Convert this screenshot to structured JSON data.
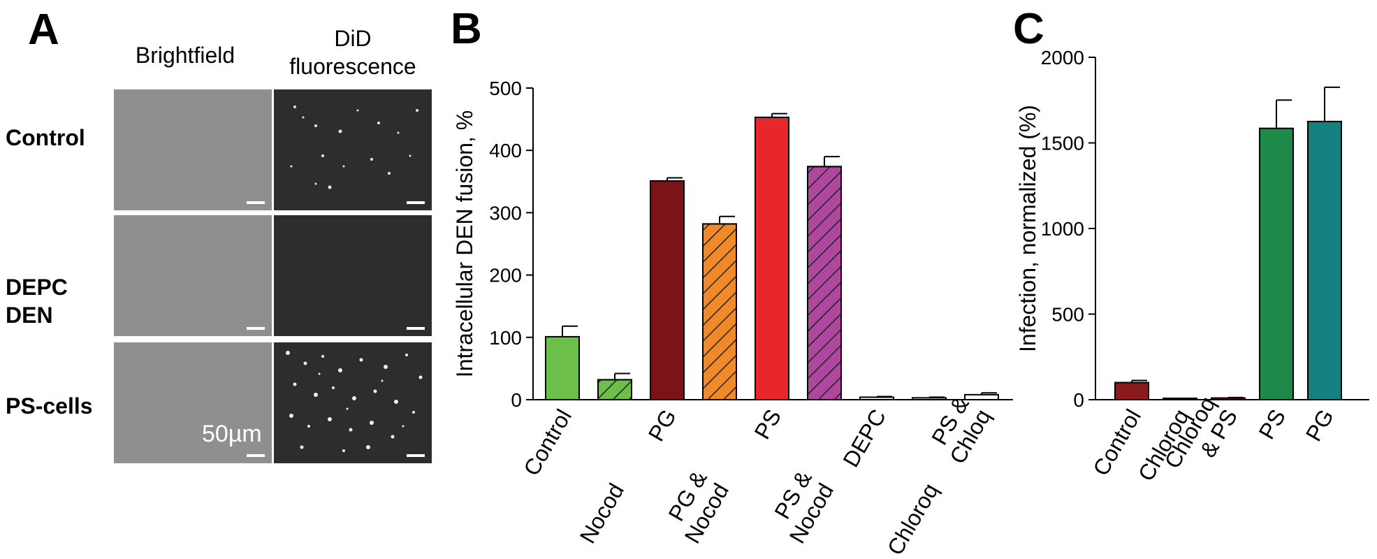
{
  "panel_a": {
    "letter": "A",
    "columns": [
      "Brightfield",
      "DiD",
      "fluorescence"
    ],
    "rows": [
      "Control",
      "DEPC",
      "DEN",
      "PS-cells"
    ],
    "scale_label": "50µm"
  },
  "chart_data": [
    {
      "type": "bar",
      "panel": "B",
      "ylabel": "Intracellular DEN fusion, %",
      "ylim": [
        0,
        500
      ],
      "yticks": [
        0,
        100,
        200,
        300,
        400,
        500
      ],
      "categories": [
        "Control",
        "Nocod",
        "PG",
        "PG & Nocod",
        "PS",
        "PS & Nocod",
        "DEPC",
        "Chloroq",
        "PS & Chloq"
      ],
      "category_lines": [
        [
          "Control"
        ],
        [
          "Nocod"
        ],
        [
          "PG"
        ],
        [
          "PG &",
          "Nocod"
        ],
        [
          "PS"
        ],
        [
          "PS &",
          "Nocod"
        ],
        [
          "DEPC"
        ],
        [
          "Chloroq"
        ],
        [
          "PS &",
          "Chloq"
        ]
      ],
      "values": [
        101,
        32,
        351,
        282,
        453,
        374,
        4,
        3,
        8
      ],
      "errors": [
        17,
        10,
        5,
        12,
        6,
        16,
        1,
        1,
        3
      ],
      "colors": [
        "#6cc04a",
        "#6cc04a",
        "#7a1418",
        "#f08a28",
        "#e8272b",
        "#b0479e",
        "#ffffff",
        "#ffffff",
        "#ffffff"
      ],
      "hatched": [
        false,
        true,
        false,
        true,
        false,
        true,
        false,
        false,
        false
      ]
    },
    {
      "type": "bar",
      "panel": "C",
      "ylabel": "Infection, normalized (%)",
      "ylim": [
        0,
        2000
      ],
      "yticks": [
        0,
        500,
        1000,
        1500,
        2000
      ],
      "categories": [
        "Control",
        "Chloroq",
        "Chloroq & PS",
        "PS",
        "PG"
      ],
      "category_lines": [
        [
          "Control"
        ],
        [
          "Chloroq"
        ],
        [
          "Chloroq",
          "& PS"
        ],
        [
          "PS"
        ],
        [
          "PG"
        ]
      ],
      "values": [
        100,
        2,
        10,
        1585,
        1625
      ],
      "errors": [
        12,
        1,
        3,
        165,
        200
      ],
      "colors": [
        "#8b1a1a",
        "#ffffff",
        "#8b1a1a",
        "#1e8a4a",
        "#167f7f"
      ],
      "hatched": [
        false,
        false,
        false,
        false,
        false
      ]
    }
  ]
}
